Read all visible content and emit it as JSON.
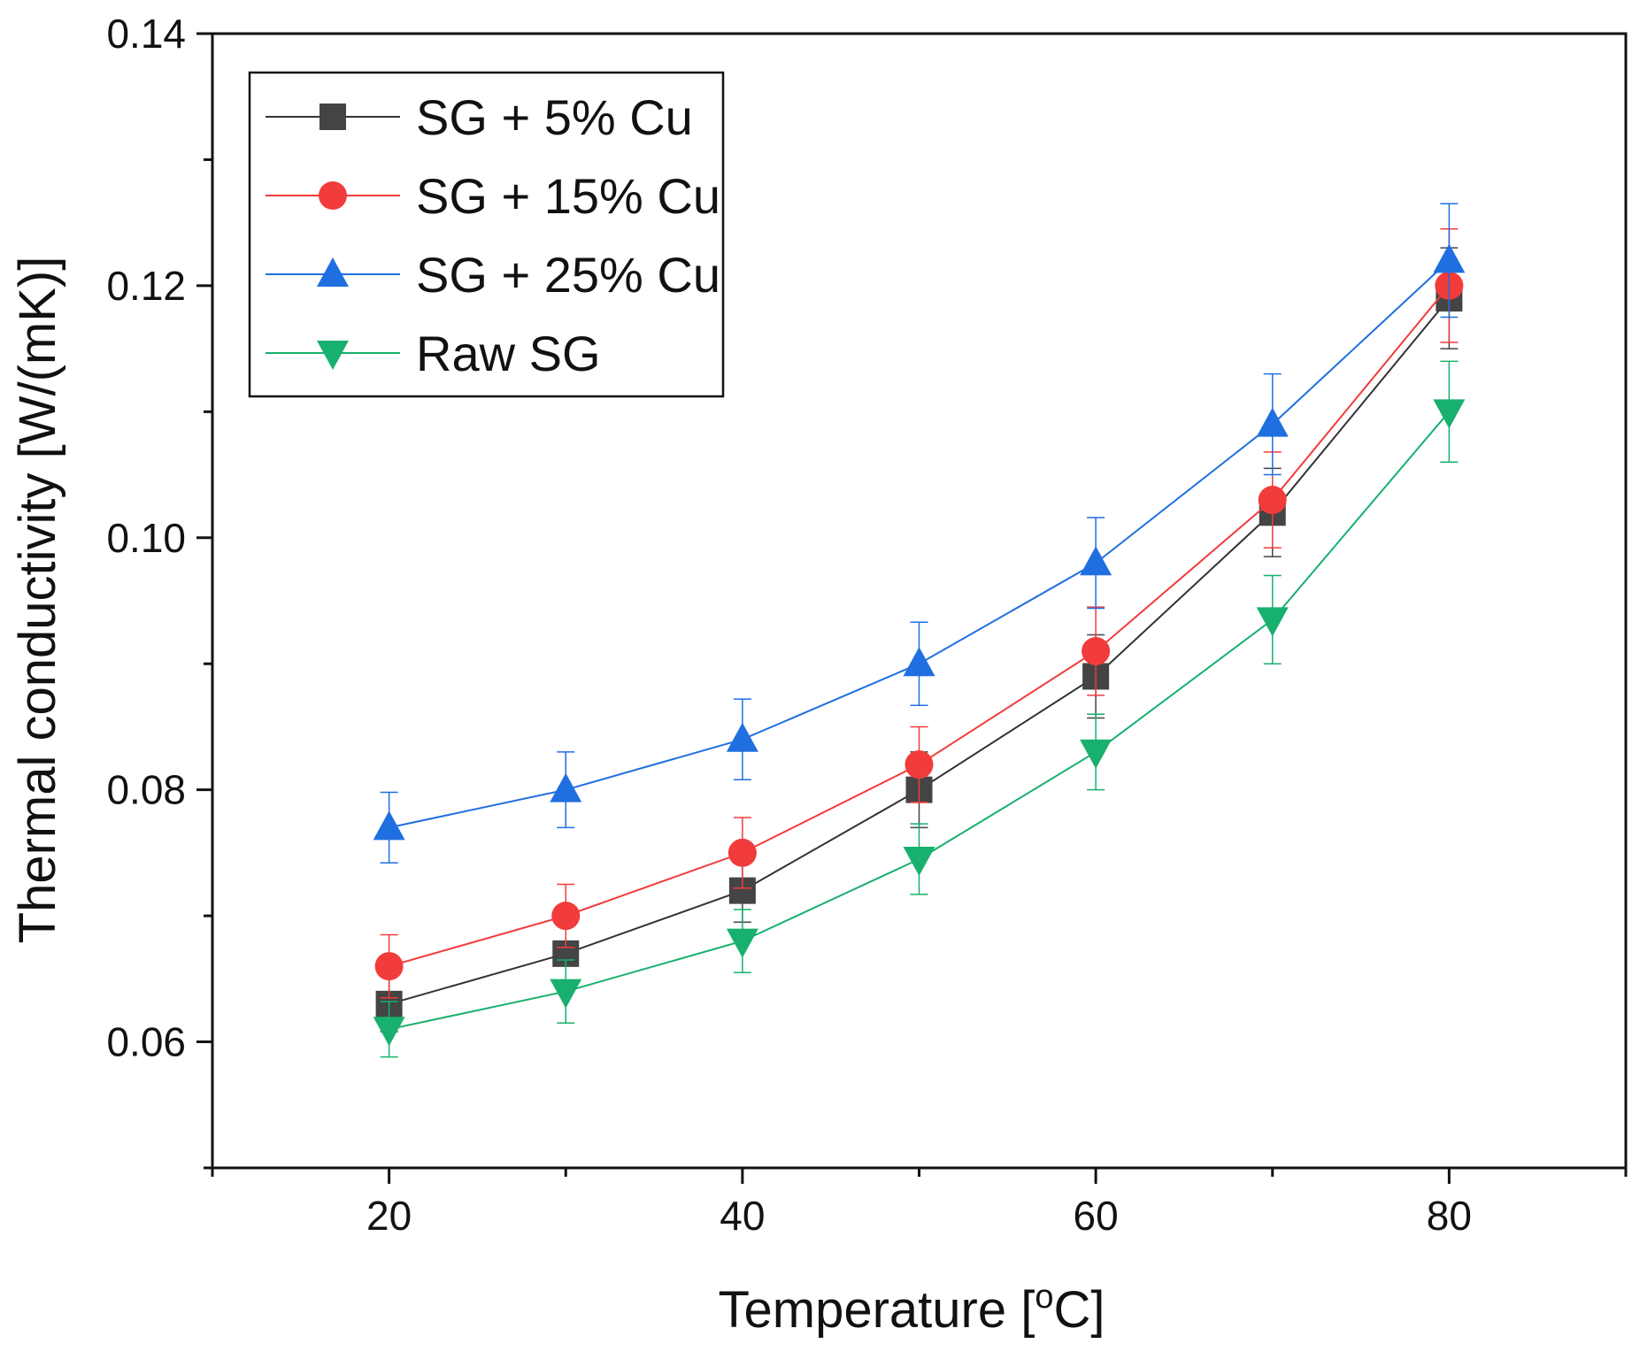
{
  "chart_data": {
    "type": "line",
    "xlabel": "Temperature [",
    "xlabel_sup": "o",
    "xlabel_tail": "C]",
    "ylabel": "Thermal conductivity [W/(mK)]",
    "xlim": [
      10,
      90
    ],
    "ylim": [
      0.05,
      0.14
    ],
    "x_ticks": [
      "20",
      "40",
      "60",
      "80"
    ],
    "x_tick_values": [
      20,
      40,
      60,
      80
    ],
    "y_ticks": [
      "0.06",
      "0.08",
      "0.10",
      "0.12",
      "0.14"
    ],
    "y_tick_values": [
      0.06,
      0.08,
      0.1,
      0.12,
      0.14
    ],
    "legend_position": "top-left",
    "grid": false,
    "x": [
      20,
      30,
      40,
      50,
      60,
      70,
      80
    ],
    "series": [
      {
        "name": "SG + 5% Cu",
        "marker": "square",
        "color": "#444444",
        "line_color": "#333333",
        "values": [
          0.063,
          0.067,
          0.072,
          0.08,
          0.089,
          0.102,
          0.119
        ],
        "errors": [
          0.0022,
          0.0025,
          0.0025,
          0.003,
          0.0033,
          0.0035,
          0.004
        ]
      },
      {
        "name": "SG + 15% Cu",
        "marker": "circle",
        "color": "#f23b3b",
        "line_color": "#f23b3b",
        "values": [
          0.066,
          0.07,
          0.075,
          0.082,
          0.091,
          0.103,
          0.12
        ],
        "errors": [
          0.0025,
          0.0025,
          0.0028,
          0.003,
          0.0035,
          0.0038,
          0.0045
        ]
      },
      {
        "name": "SG + 25% Cu",
        "marker": "triangle-up",
        "color": "#1f6fe0",
        "line_color": "#1f6fe0",
        "values": [
          0.077,
          0.08,
          0.084,
          0.09,
          0.098,
          0.109,
          0.122
        ],
        "errors": [
          0.0028,
          0.003,
          0.0032,
          0.0033,
          0.0036,
          0.004,
          0.0045
        ]
      },
      {
        "name": "Raw SG",
        "marker": "triangle-down",
        "color": "#18b06e",
        "line_color": "#18b06e",
        "values": [
          0.061,
          0.064,
          0.068,
          0.0745,
          0.083,
          0.0935,
          0.11
        ],
        "errors": [
          0.0022,
          0.0025,
          0.0025,
          0.0028,
          0.003,
          0.0035,
          0.004
        ]
      }
    ]
  }
}
